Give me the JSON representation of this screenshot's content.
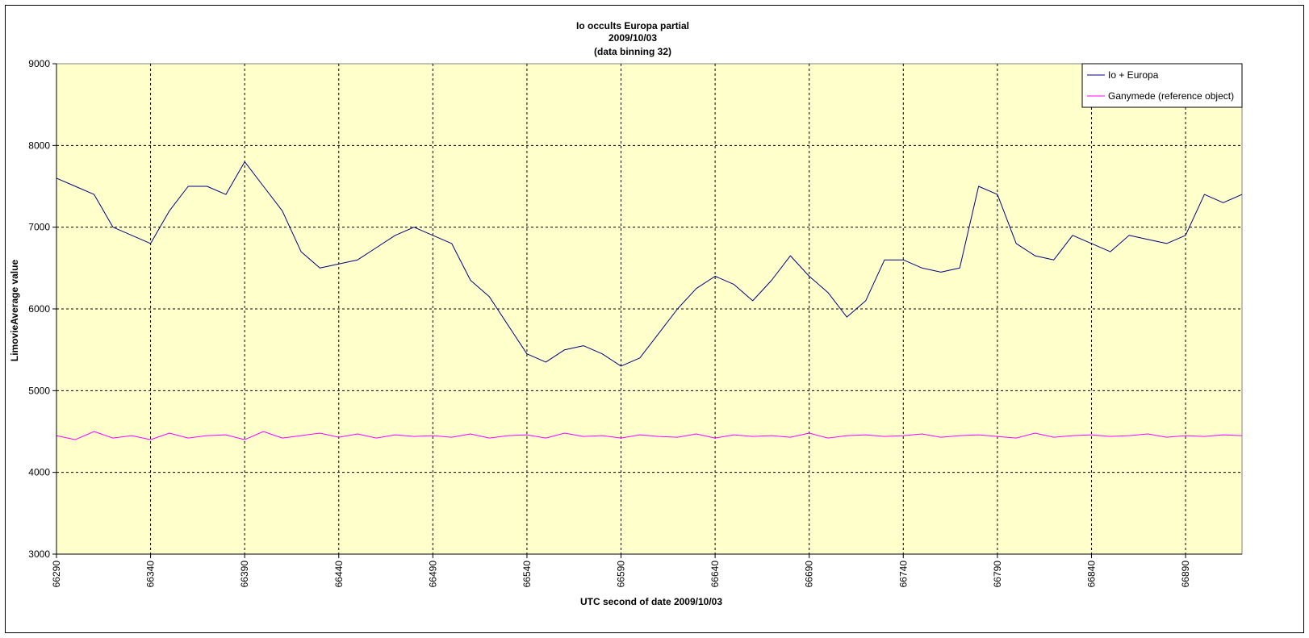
{
  "chart_data": {
    "type": "line",
    "title": "Io occults Europa partial",
    "subtitle": "2009/10/03",
    "subtitle2": "(data binning 32)",
    "xlabel": "UTC second  of date 2009/10/03",
    "ylabel": "LimovieAverage value",
    "xlim": [
      66290,
      66920
    ],
    "ylim": [
      3000,
      9000
    ],
    "x_ticks": [
      66290,
      66340,
      66390,
      66440,
      66490,
      66540,
      66590,
      66640,
      66690,
      66740,
      66790,
      66840,
      66890
    ],
    "y_ticks": [
      3000,
      4000,
      5000,
      6000,
      7000,
      8000,
      9000
    ],
    "grid": true,
    "legend_position": "top-right",
    "plot_background": "#ffffcc",
    "series": [
      {
        "name": "Io + Europa",
        "color": "#000080",
        "x": [
          66290,
          66300,
          66310,
          66320,
          66330,
          66340,
          66350,
          66360,
          66370,
          66380,
          66390,
          66400,
          66410,
          66420,
          66430,
          66440,
          66450,
          66460,
          66470,
          66480,
          66490,
          66500,
          66510,
          66520,
          66530,
          66540,
          66550,
          66560,
          66570,
          66580,
          66590,
          66600,
          66610,
          66620,
          66630,
          66640,
          66650,
          66660,
          66670,
          66680,
          66690,
          66700,
          66710,
          66720,
          66730,
          66740,
          66750,
          66760,
          66770,
          66780,
          66790,
          66800,
          66810,
          66820,
          66830,
          66840,
          66850,
          66860,
          66870,
          66880,
          66890,
          66900,
          66910,
          66920
        ],
        "y": [
          7600,
          7500,
          7400,
          7000,
          6900,
          6800,
          7200,
          7500,
          7500,
          7400,
          7800,
          7500,
          7200,
          6700,
          6500,
          6550,
          6600,
          6750,
          6900,
          7000,
          6900,
          6800,
          6350,
          6150,
          5800,
          5450,
          5350,
          5500,
          5550,
          5450,
          5300,
          5400,
          5700,
          6000,
          6250,
          6400,
          6300,
          6100,
          6350,
          6650,
          6400,
          6200,
          5900,
          6100,
          6600,
          6600,
          6500,
          6450,
          6500,
          7500,
          7400,
          6800,
          6650,
          6600,
          6900,
          6800,
          6700,
          6900,
          6850,
          6800,
          6900,
          7400,
          7300,
          7400
        ]
      },
      {
        "name": "Ganymede (reference object)",
        "color": "#ff00ff",
        "x": [
          66290,
          66300,
          66310,
          66320,
          66330,
          66340,
          66350,
          66360,
          66370,
          66380,
          66390,
          66400,
          66410,
          66420,
          66430,
          66440,
          66450,
          66460,
          66470,
          66480,
          66490,
          66500,
          66510,
          66520,
          66530,
          66540,
          66550,
          66560,
          66570,
          66580,
          66590,
          66600,
          66610,
          66620,
          66630,
          66640,
          66650,
          66660,
          66670,
          66680,
          66690,
          66700,
          66710,
          66720,
          66730,
          66740,
          66750,
          66760,
          66770,
          66780,
          66790,
          66800,
          66810,
          66820,
          66830,
          66840,
          66850,
          66860,
          66870,
          66880,
          66890,
          66900,
          66910,
          66920
        ],
        "y": [
          4450,
          4400,
          4500,
          4420,
          4450,
          4400,
          4480,
          4420,
          4450,
          4460,
          4400,
          4500,
          4420,
          4450,
          4480,
          4430,
          4470,
          4420,
          4460,
          4440,
          4450,
          4430,
          4470,
          4420,
          4450,
          4460,
          4420,
          4480,
          4440,
          4450,
          4420,
          4460,
          4440,
          4430,
          4470,
          4420,
          4460,
          4440,
          4450,
          4430,
          4480,
          4420,
          4450,
          4460,
          4440,
          4450,
          4470,
          4430,
          4450,
          4460,
          4440,
          4420,
          4480,
          4430,
          4450,
          4460,
          4440,
          4450,
          4470,
          4430,
          4450,
          4440,
          4460,
          4450
        ]
      }
    ]
  }
}
